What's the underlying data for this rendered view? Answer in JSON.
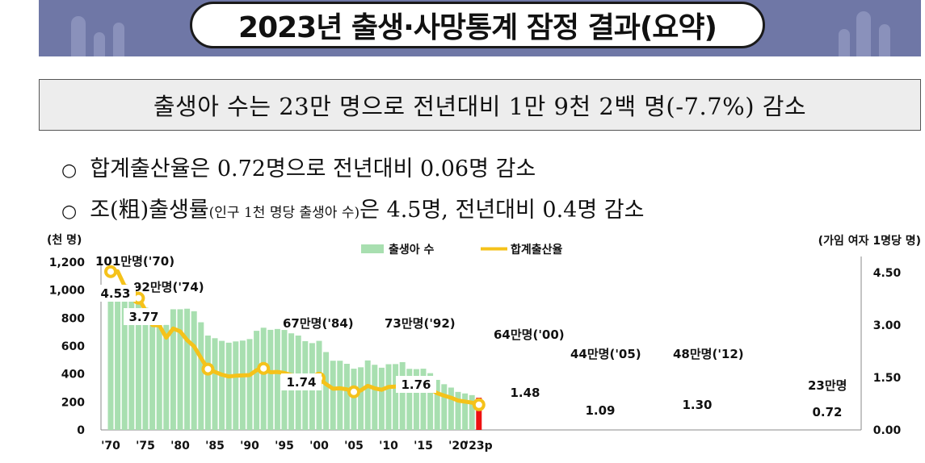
{
  "header": {
    "title": "2023년 출생·사망통계 잠정 결과(요약)",
    "headline": "출생아 수는 23만 명으로 전년대비 1만 9천 2백 명(-7.7%) 감소"
  },
  "bullets": [
    {
      "mark": "○",
      "text": "합계출산율은 0.72명으로 전년대비 0.06명 감소",
      "small": "",
      "tail": ""
    },
    {
      "mark": "○",
      "text": "조(粗)출생률",
      "small": "(인구 1천 명당 출생아 수)",
      "tail": "은 4.5명, 전년대비 0.4명 감소"
    }
  ],
  "colors": {
    "bars": "#a8dfb0",
    "last_bar": "#ee1111",
    "line": "#f5c21a",
    "marker_fill": "#ffffff",
    "banner": "#6f77a6"
  },
  "chart_data": {
    "type": "bar",
    "left_unit": "(천 명)",
    "right_unit": "(가임 여자 1명당 명)",
    "legend": [
      "출생아 수",
      "합계출산율"
    ],
    "series": [
      {
        "name": "출생아 수",
        "type": "bar",
        "values": [
          1007,
          1025,
          956,
          967,
          923,
          875,
          797,
          826,
          751,
          863,
          863,
          867,
          849,
          770,
          675,
          656,
          637,
          624,
          633,
          639,
          650,
          709,
          731,
          716,
          722,
          715,
          691,
          675,
          635,
          621,
          637,
          557,
          495,
          495,
          473,
          438,
          448,
          497,
          466,
          445,
          470,
          471,
          485,
          437,
          435,
          438,
          406,
          358,
          327,
          303,
          272,
          261,
          249,
          230
        ]
      },
      {
        "name": "합계출산율",
        "type": "line",
        "values": [
          4.53,
          4.54,
          4.12,
          4.07,
          3.77,
          3.43,
          3.0,
          2.99,
          2.64,
          2.9,
          2.82,
          2.57,
          2.39,
          2.06,
          1.74,
          1.66,
          1.58,
          1.53,
          1.55,
          1.56,
          1.57,
          1.71,
          1.76,
          1.65,
          1.66,
          1.63,
          1.57,
          1.54,
          1.46,
          1.43,
          1.48,
          1.31,
          1.18,
          1.19,
          1.16,
          1.09,
          1.13,
          1.26,
          1.19,
          1.15,
          1.23,
          1.24,
          1.3,
          1.19,
          1.21,
          1.24,
          1.17,
          1.05,
          0.98,
          0.92,
          0.84,
          0.81,
          0.78,
          0.72
        ]
      }
    ],
    "x_years": [
      1970,
      1971,
      1972,
      1973,
      1974,
      1975,
      1976,
      1977,
      1978,
      1979,
      1980,
      1981,
      1982,
      1983,
      1984,
      1985,
      1986,
      1987,
      1988,
      1989,
      1990,
      1991,
      1992,
      1993,
      1994,
      1995,
      1996,
      1997,
      1998,
      1999,
      2000,
      2001,
      2002,
      2003,
      2004,
      2005,
      2006,
      2007,
      2008,
      2009,
      2010,
      2011,
      2012,
      2013,
      2014,
      2015,
      2016,
      2017,
      2018,
      2019,
      2020,
      2021,
      2022,
      2023
    ],
    "x_tick_labels": [
      "'70",
      "'75",
      "'80",
      "'85",
      "'90",
      "'95",
      "'00",
      "'05",
      "'10",
      "'15",
      "'20",
      "'23p"
    ],
    "x_tick_years": [
      1970,
      1975,
      1980,
      1985,
      1990,
      1995,
      2000,
      2005,
      2010,
      2015,
      2020,
      2023
    ],
    "y_left": {
      "ticks": [
        "0",
        "200",
        "400",
        "600",
        "800",
        "1,000",
        "1,200"
      ],
      "range": [
        0,
        1200
      ]
    },
    "y_right": {
      "ticks": [
        "0.00",
        "1.50",
        "3.00",
        "4.50"
      ],
      "range": [
        0,
        4.8
      ]
    },
    "bar_annotations": [
      {
        "year": 1970,
        "text": "101만명('70)"
      },
      {
        "year": 1974,
        "text": "92만명('74)"
      },
      {
        "year": 1984,
        "text": "67만명('84)"
      },
      {
        "year": 1992,
        "text": "73만명('92)"
      },
      {
        "year": 2000,
        "text": "64만명('00)"
      },
      {
        "year": 2005,
        "text": "44만명('05)"
      },
      {
        "year": 2012,
        "text": "48만명('12)"
      },
      {
        "year": 2023,
        "text": "23만명"
      }
    ],
    "rate_annotations": [
      {
        "year": 1970,
        "text": "4.53"
      },
      {
        "year": 1974,
        "text": "3.77"
      },
      {
        "year": 1984,
        "text": "1.74"
      },
      {
        "year": 1992,
        "text": "1.76"
      },
      {
        "year": 2000,
        "text": "1.48"
      },
      {
        "year": 2005,
        "text": "1.09"
      },
      {
        "year": 2012,
        "text": "1.30"
      },
      {
        "year": 2023,
        "text": "0.72"
      }
    ]
  }
}
